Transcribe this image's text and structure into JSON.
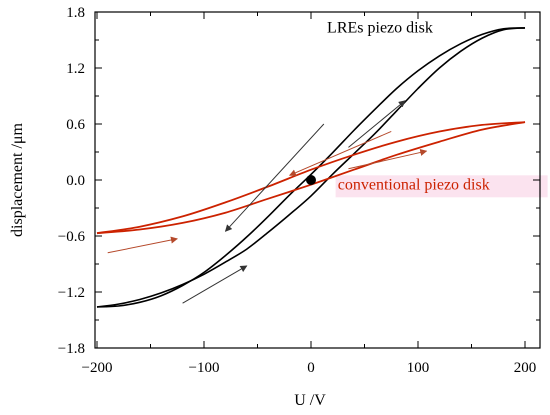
{
  "chart_data": {
    "type": "line",
    "xlabel": "U /V",
    "ylabel": "displacement /μm",
    "xlim": [
      -200,
      200
    ],
    "ylim": [
      -1.8,
      1.8
    ],
    "xticks": [
      "-200",
      "-100",
      "0",
      "100",
      "200"
    ],
    "yticks": [
      "-1.8",
      "-1.2",
      "-0.6",
      "0.0",
      "0.6",
      "1.2",
      "1.8"
    ],
    "grid": false,
    "series": [
      {
        "name": "LREs piezo disk",
        "color": "#000000",
        "ascending": {
          "x": [
            -200,
            -180,
            -160,
            -140,
            -120,
            -100,
            -80,
            -60,
            -40,
            -20,
            0,
            20,
            40,
            60,
            80,
            100,
            120,
            140,
            160,
            180,
            200
          ],
          "y": [
            -1.36,
            -1.33,
            -1.28,
            -1.21,
            -1.12,
            -1.01,
            -0.88,
            -0.74,
            -0.56,
            -0.37,
            -0.17,
            0.06,
            0.28,
            0.5,
            0.74,
            0.98,
            1.2,
            1.38,
            1.52,
            1.61,
            1.63
          ]
        },
        "descending": {
          "x": [
            200,
            180,
            160,
            140,
            120,
            100,
            80,
            60,
            40,
            20,
            0,
            -20,
            -40,
            -60,
            -80,
            -100,
            -120,
            -140,
            -160,
            -180,
            -200
          ],
          "y": [
            1.63,
            1.62,
            1.56,
            1.46,
            1.33,
            1.17,
            0.98,
            0.76,
            0.53,
            0.29,
            0.06,
            -0.16,
            -0.39,
            -0.61,
            -0.81,
            -0.99,
            -1.13,
            -1.24,
            -1.31,
            -1.35,
            -1.36
          ]
        }
      },
      {
        "name": "conventional piezo disk",
        "color": "#cc2200",
        "ascending": {
          "x": [
            -200,
            -160,
            -120,
            -80,
            -40,
            0,
            40,
            80,
            120,
            160,
            200
          ],
          "y": [
            -0.57,
            -0.53,
            -0.46,
            -0.35,
            -0.2,
            -0.05,
            0.11,
            0.27,
            0.41,
            0.54,
            0.62
          ]
        },
        "descending": {
          "x": [
            200,
            160,
            120,
            80,
            40,
            0,
            -40,
            -80,
            -120,
            -160,
            -200
          ],
          "y": [
            0.62,
            0.59,
            0.52,
            0.41,
            0.27,
            0.11,
            -0.07,
            -0.24,
            -0.39,
            -0.5,
            -0.57
          ]
        }
      }
    ],
    "annotations": [
      {
        "text": "LREs piezo disk",
        "x": 15,
        "y": 1.58,
        "color": "#000000"
      },
      {
        "text": "conventional piezo disk",
        "x": 25,
        "y": -0.1,
        "color": "#cc2200"
      }
    ],
    "origin_point": {
      "x": 0,
      "y": 0
    }
  }
}
